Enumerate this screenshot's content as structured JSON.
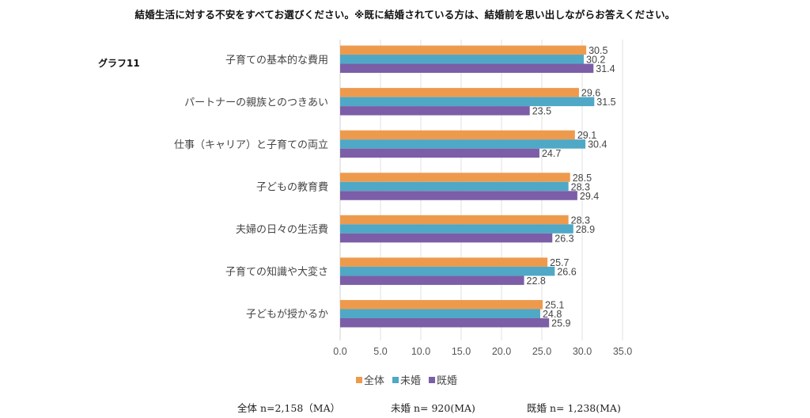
{
  "header": {
    "title": "結婚生活に対する不安をすべてお選びください。※既に結婚されている方は、結婚前を思い出しながらお答えください。",
    "graph_label": "グラフ11"
  },
  "chart_data": {
    "type": "bar",
    "orientation": "horizontal",
    "title": "結婚生活に対する不安をすべてお選びください。※既に結婚されている方は、結婚前を思い出しながらお答えください。",
    "xlabel": "",
    "ylabel": "",
    "xlim": [
      0,
      35
    ],
    "x_ticks": [
      "0.0",
      "5.0",
      "10.0",
      "15.0",
      "20.0",
      "25.0",
      "30.0",
      "35.0"
    ],
    "grid": true,
    "legend_position": "bottom",
    "categories": [
      "子育ての基本的な費用",
      "パートナーの親族とのつきあい",
      "仕事（キャリア）と子育ての両立",
      "子どもの教育費",
      "夫婦の日々の生活費",
      "子育ての知識や大変さ",
      "子どもが授かるか"
    ],
    "series": [
      {
        "name": "全体",
        "color": "#EE9A4D",
        "values": [
          30.5,
          29.6,
          29.1,
          28.5,
          28.3,
          25.7,
          25.1
        ]
      },
      {
        "name": "未婚",
        "color": "#4FA8C6",
        "values": [
          30.2,
          31.5,
          30.4,
          28.3,
          28.9,
          26.6,
          24.8
        ]
      },
      {
        "name": "既婚",
        "color": "#7B5EA7",
        "values": [
          31.4,
          23.5,
          24.7,
          29.4,
          26.3,
          22.8,
          25.9
        ]
      }
    ]
  },
  "legend": [
    {
      "label": "全体",
      "color": "#EE9A4D"
    },
    {
      "label": "未婚",
      "color": "#4FA8C6"
    },
    {
      "label": "既婚",
      "color": "#7B5EA7"
    }
  ],
  "footer": {
    "total": "全体 n=2,158（MA）",
    "unmarried": "未婚 n= 920(MA)",
    "married": "既婚 n= 1,238(MA)"
  }
}
